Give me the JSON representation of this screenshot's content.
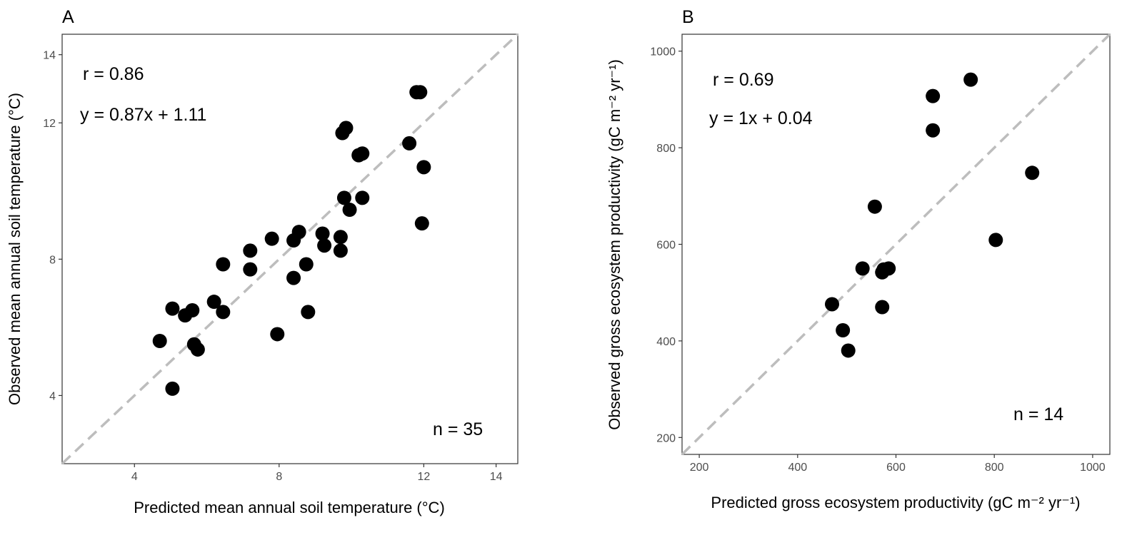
{
  "chart_data": [
    {
      "type": "scatter",
      "panel_label": "A",
      "xlabel": "Predicted mean annual soil temperature (°C)",
      "ylabel": "Observed mean annual soil temperature (°C)",
      "xlim": [
        2.0,
        14.6
      ],
      "ylim": [
        2.0,
        14.6
      ],
      "xticks": [
        4,
        8,
        12,
        14
      ],
      "yticks": [
        4,
        8,
        12,
        14
      ],
      "grid": false,
      "reference_line": {
        "slope": 1,
        "intercept": 0,
        "style": "dashed",
        "color": "#bdbdbd"
      },
      "annotations": {
        "r": "r = 0.86",
        "equation": "y = 0.87x + 1.11",
        "n": "n = 35"
      },
      "x": [
        4.7,
        5.05,
        5.05,
        5.4,
        5.6,
        5.65,
        5.75,
        6.2,
        6.45,
        6.45,
        7.2,
        7.2,
        7.8,
        7.95,
        8.4,
        8.4,
        8.55,
        8.75,
        8.8,
        9.2,
        9.25,
        9.7,
        9.7,
        9.75,
        9.8,
        9.85,
        9.95,
        10.2,
        10.3,
        10.3,
        11.6,
        11.8,
        11.9,
        11.95,
        12.0
      ],
      "y": [
        5.6,
        4.2,
        6.55,
        6.35,
        6.5,
        5.5,
        5.35,
        6.75,
        7.85,
        6.45,
        8.25,
        7.7,
        8.6,
        5.8,
        8.55,
        7.45,
        8.8,
        7.85,
        6.45,
        8.75,
        8.4,
        8.25,
        8.65,
        11.7,
        9.8,
        11.85,
        9.45,
        11.05,
        11.1,
        9.8,
        11.4,
        12.9,
        12.9,
        9.05,
        10.7
      ]
    },
    {
      "type": "scatter",
      "panel_label": "B",
      "xlabel": "Predicted gross ecosystem productivity (gC m⁻² yr⁻¹)",
      "ylabel": "Observed gross ecosystem productivity (gC m⁻² yr⁻¹)",
      "xlim": [
        165,
        1035
      ],
      "ylim": [
        165,
        1035
      ],
      "xticks": [
        200,
        400,
        600,
        800,
        1000
      ],
      "yticks": [
        200,
        400,
        600,
        800,
        1000
      ],
      "grid": false,
      "reference_line": {
        "slope": 1,
        "intercept": 0,
        "style": "dashed",
        "color": "#bdbdbd"
      },
      "annotations": {
        "r": "r = 0.69",
        "equation": "y = 1x + 0.04",
        "n": "n = 14"
      },
      "x": [
        470,
        492,
        503,
        532,
        557,
        572,
        575,
        585,
        675,
        675,
        752,
        803,
        877,
        572
      ],
      "y": [
        476,
        422,
        380,
        550,
        678,
        542,
        548,
        550,
        907,
        836,
        941,
        609,
        748,
        470
      ]
    }
  ]
}
